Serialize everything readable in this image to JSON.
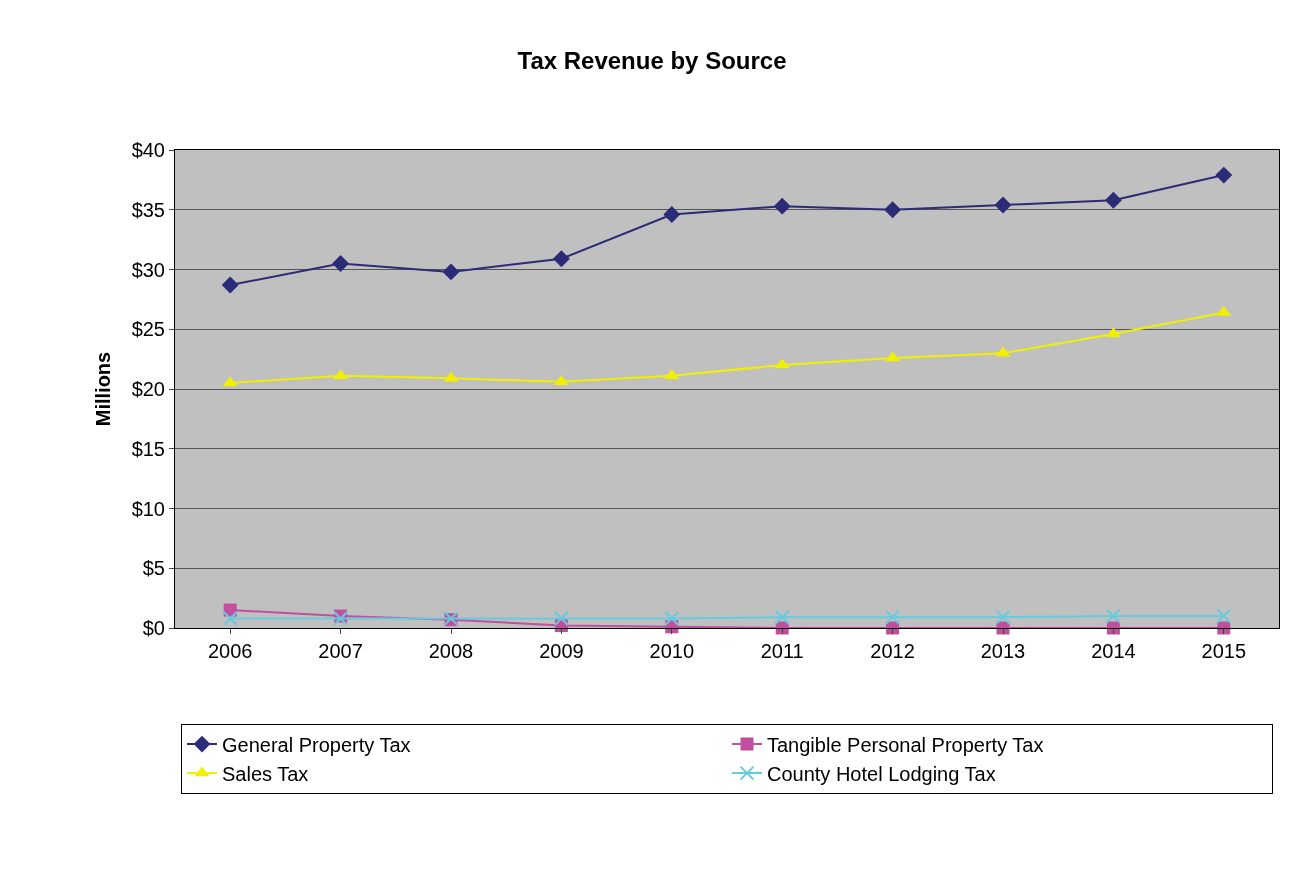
{
  "chart_data": {
    "type": "line",
    "title": "Tax Revenue by Source",
    "ylabel": "Millions",
    "categories": [
      "2006",
      "2007",
      "2008",
      "2009",
      "2010",
      "2011",
      "2012",
      "2013",
      "2014",
      "2015"
    ],
    "series": [
      {
        "name": "General Property Tax",
        "color": "#2b2b78",
        "marker": "diamond",
        "values": [
          28.7,
          30.5,
          29.8,
          30.9,
          34.6,
          35.3,
          35.0,
          35.4,
          35.8,
          37.9
        ]
      },
      {
        "name": "Tangible Personal Property Tax",
        "color": "#c0509f",
        "marker": "square",
        "values": [
          1.5,
          1.0,
          0.7,
          0.2,
          0.1,
          0.0,
          0.0,
          0.0,
          0.0,
          0.0
        ]
      },
      {
        "name": "Sales Tax",
        "color": "#f0f000",
        "marker": "triangle",
        "values": [
          20.5,
          21.1,
          20.9,
          20.6,
          21.1,
          22.0,
          22.6,
          23.0,
          24.6,
          26.4
        ]
      },
      {
        "name": "County Hotel Lodging Tax",
        "color": "#66ccdd",
        "marker": "cross",
        "values": [
          0.8,
          0.8,
          0.8,
          0.8,
          0.8,
          0.9,
          0.9,
          0.9,
          1.0,
          1.0
        ]
      }
    ],
    "ylim": [
      0,
      40
    ],
    "yticks": [
      {
        "value": 0,
        "label": "$0"
      },
      {
        "value": 5,
        "label": "$5"
      },
      {
        "value": 10,
        "label": "$10"
      },
      {
        "value": 15,
        "label": "$15"
      },
      {
        "value": 20,
        "label": "$20"
      },
      {
        "value": 25,
        "label": "$25"
      },
      {
        "value": 30,
        "label": "$30"
      },
      {
        "value": 35,
        "label": "$35"
      },
      {
        "value": 40,
        "label": "$40"
      }
    ],
    "grid": "y",
    "legend": "bottom"
  }
}
